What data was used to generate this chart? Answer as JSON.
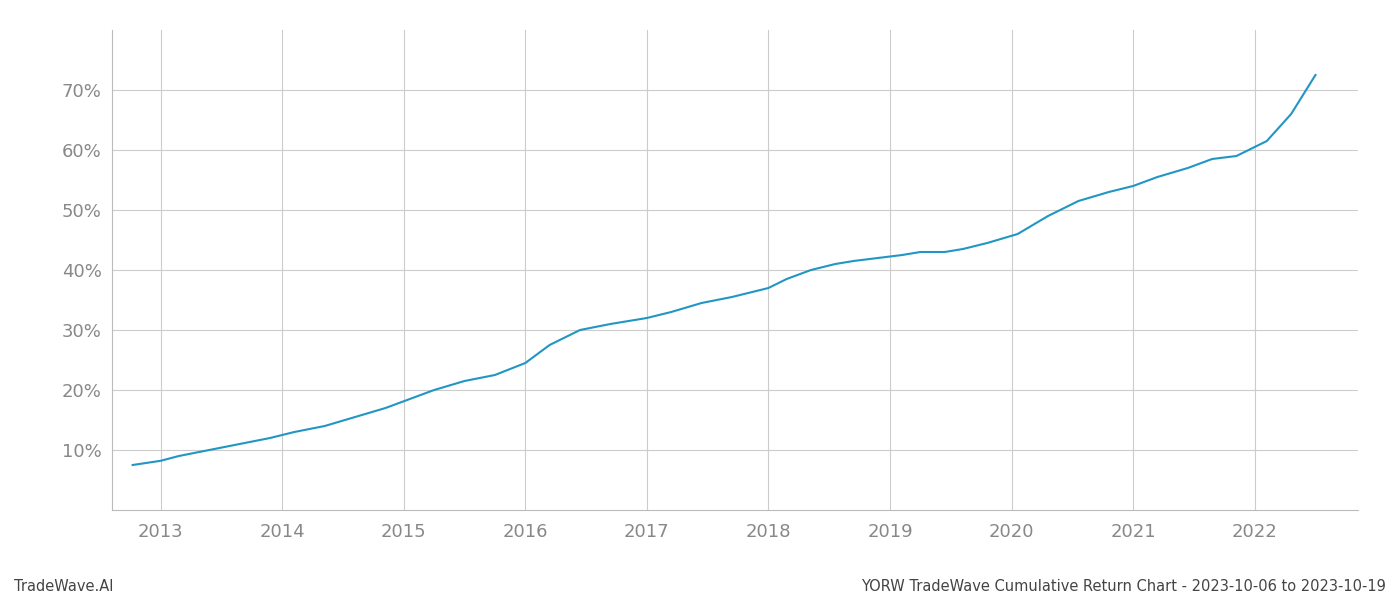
{
  "title_bottom": "YORW TradeWave Cumulative Return Chart - 2023-10-06 to 2023-10-19",
  "watermark": "TradeWave.AI",
  "line_color": "#2196c4",
  "background_color": "#ffffff",
  "grid_color": "#cccccc",
  "x_years": [
    2013,
    2014,
    2015,
    2016,
    2017,
    2018,
    2019,
    2020,
    2021,
    2022
  ],
  "x_tick_color": "#888888",
  "ylim": [
    0,
    80
  ],
  "yticks": [
    10,
    20,
    30,
    40,
    50,
    60,
    70
  ],
  "xlim_left": 2012.6,
  "xlim_right": 2022.85,
  "data_x": [
    2012.77,
    2013.0,
    2013.15,
    2013.4,
    2013.65,
    2013.9,
    2014.1,
    2014.35,
    2014.6,
    2014.85,
    2015.05,
    2015.25,
    2015.5,
    2015.75,
    2016.0,
    2016.2,
    2016.45,
    2016.7,
    2017.0,
    2017.2,
    2017.45,
    2017.7,
    2018.0,
    2018.15,
    2018.35,
    2018.55,
    2018.7,
    2018.9,
    2019.1,
    2019.25,
    2019.45,
    2019.6,
    2019.8,
    2020.05,
    2020.3,
    2020.55,
    2020.8,
    2021.0,
    2021.2,
    2021.45,
    2021.65,
    2021.85,
    2022.1,
    2022.3,
    2022.5
  ],
  "data_y": [
    7.5,
    8.2,
    9.0,
    10.0,
    11.0,
    12.0,
    13.0,
    14.0,
    15.5,
    17.0,
    18.5,
    20.0,
    21.5,
    22.5,
    24.5,
    27.5,
    30.0,
    31.0,
    32.0,
    33.0,
    34.5,
    35.5,
    37.0,
    38.5,
    40.0,
    41.0,
    41.5,
    42.0,
    42.5,
    43.0,
    43.0,
    43.5,
    44.5,
    46.0,
    49.0,
    51.5,
    53.0,
    54.0,
    55.5,
    57.0,
    58.5,
    59.0,
    61.5,
    66.0,
    72.5
  ]
}
